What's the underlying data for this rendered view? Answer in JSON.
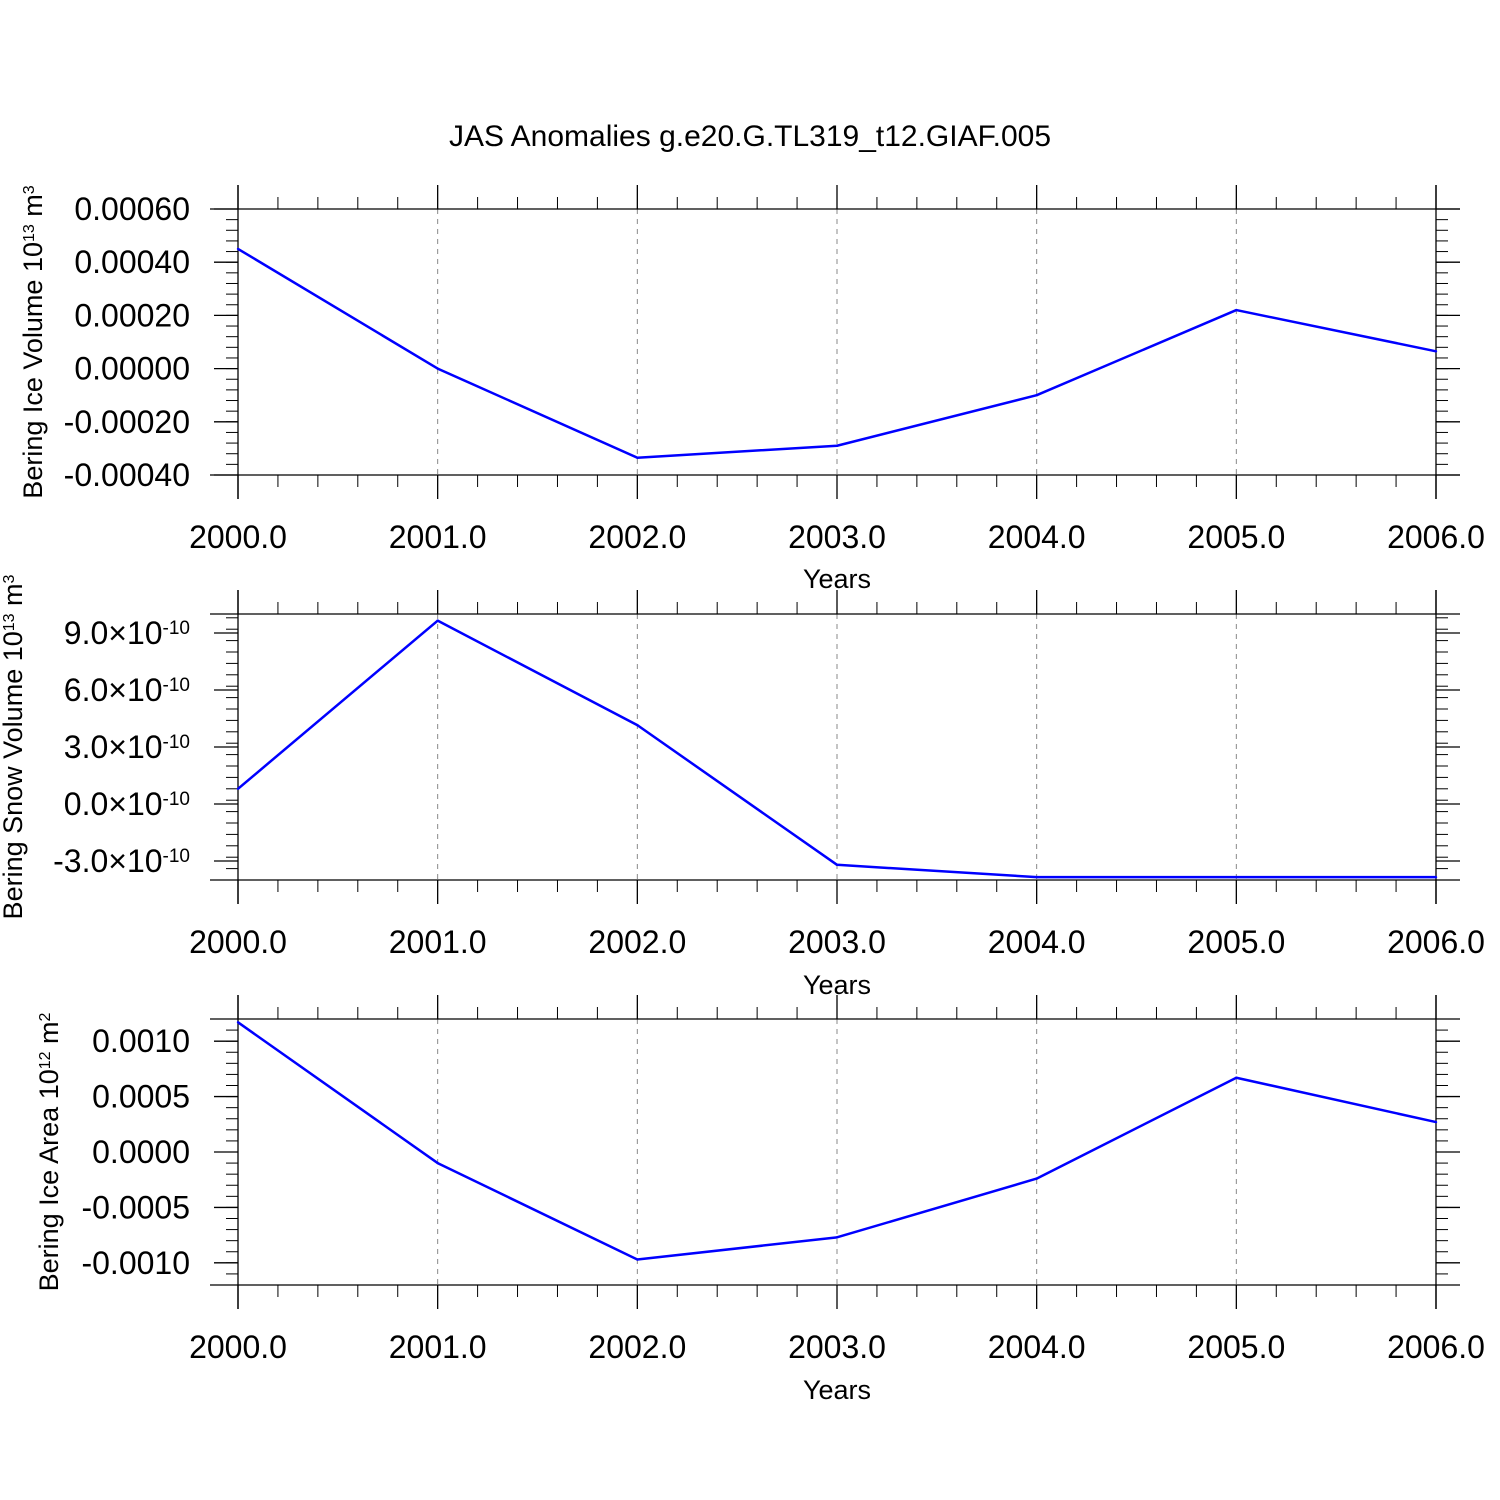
{
  "title": "JAS Anomalies g.e20.G.TL319_t12.GIAF.005",
  "colors": {
    "line": "#0000ff",
    "axis": "#000000",
    "grid": "#888888"
  },
  "chart_data": [
    {
      "type": "line",
      "title": "JAS Anomalies g.e20.G.TL319_t12.GIAF.005",
      "xlabel": "Years",
      "ylabel": {
        "text": "Bering Ice Volume 10",
        "sup": "13",
        "unit": " m",
        "unit_sup": "3"
      },
      "x": [
        2000,
        2001,
        2002,
        2003,
        2004,
        2005,
        2006
      ],
      "xlim": [
        2000,
        2006
      ],
      "x_tick_labels": [
        "2000.0",
        "2001.0",
        "2002.0",
        "2003.0",
        "2004.0",
        "2005.0",
        "2006.0"
      ],
      "ylim": [
        -0.0004,
        0.0006
      ],
      "y_ticks": [
        0.0006,
        0.0004,
        0.0002,
        0.0,
        -0.0002,
        -0.0004
      ],
      "y_tick_labels": [
        "0.00060",
        "0.00040",
        "0.00020",
        "0.00000",
        "-0.00020",
        "-0.00040"
      ],
      "series": [
        {
          "values": [
            0.00045,
            0.0,
            -0.000335,
            -0.00029,
            -0.0001,
            0.00022,
            6.5e-05
          ]
        }
      ],
      "grid": "vertical dashed"
    },
    {
      "type": "line",
      "xlabel": "Years",
      "ylabel": {
        "text": "Bering Snow Volume 10",
        "sup": "13",
        "unit": " m",
        "unit_sup": "3"
      },
      "x": [
        2000,
        2001,
        2002,
        2003,
        2004,
        2005,
        2006
      ],
      "xlim": [
        2000,
        2006
      ],
      "x_tick_labels": [
        "2000.0",
        "2001.0",
        "2002.0",
        "2003.0",
        "2004.0",
        "2005.0",
        "2006.0"
      ],
      "ylim": [
        -4e-10,
        1e-09
      ],
      "y_ticks": [
        9e-10,
        6e-10,
        3e-10,
        0.0,
        -3e-10
      ],
      "y_tick_labels": [
        {
          "mantissa": "9.0",
          "exp": "-10"
        },
        {
          "mantissa": "6.0",
          "exp": "-10"
        },
        {
          "mantissa": "3.0",
          "exp": "-10"
        },
        {
          "mantissa": "0.0",
          "exp": "-10"
        },
        {
          "mantissa": "-3.0",
          "exp": "-10"
        }
      ],
      "tick_times_symbol": "×10",
      "series": [
        {
          "values": [
            8e-11,
            9.65e-10,
            4.15e-10,
            -3.2e-10,
            -3.85e-10,
            -3.85e-10,
            -3.85e-10
          ]
        }
      ],
      "grid": "vertical dashed"
    },
    {
      "type": "line",
      "xlabel": "Years",
      "ylabel": {
        "text": "Bering Ice Area 10",
        "sup": "12",
        "unit": " m",
        "unit_sup": "2"
      },
      "x": [
        2000,
        2001,
        2002,
        2003,
        2004,
        2005,
        2006
      ],
      "xlim": [
        2000,
        2006
      ],
      "x_tick_labels": [
        "2000.0",
        "2001.0",
        "2002.0",
        "2003.0",
        "2004.0",
        "2005.0",
        "2006.0"
      ],
      "ylim": [
        -0.0012,
        0.0012
      ],
      "y_ticks": [
        0.001,
        0.0005,
        0.0,
        -0.0005,
        -0.001
      ],
      "y_tick_labels": [
        "0.0010",
        "0.0005",
        "0.0000",
        "-0.0005",
        "-0.0010"
      ],
      "series": [
        {
          "values": [
            0.00117,
            -0.0001,
            -0.00097,
            -0.00077,
            -0.00024,
            0.00067,
            0.00027
          ]
        }
      ],
      "grid": "vertical dashed"
    }
  ]
}
